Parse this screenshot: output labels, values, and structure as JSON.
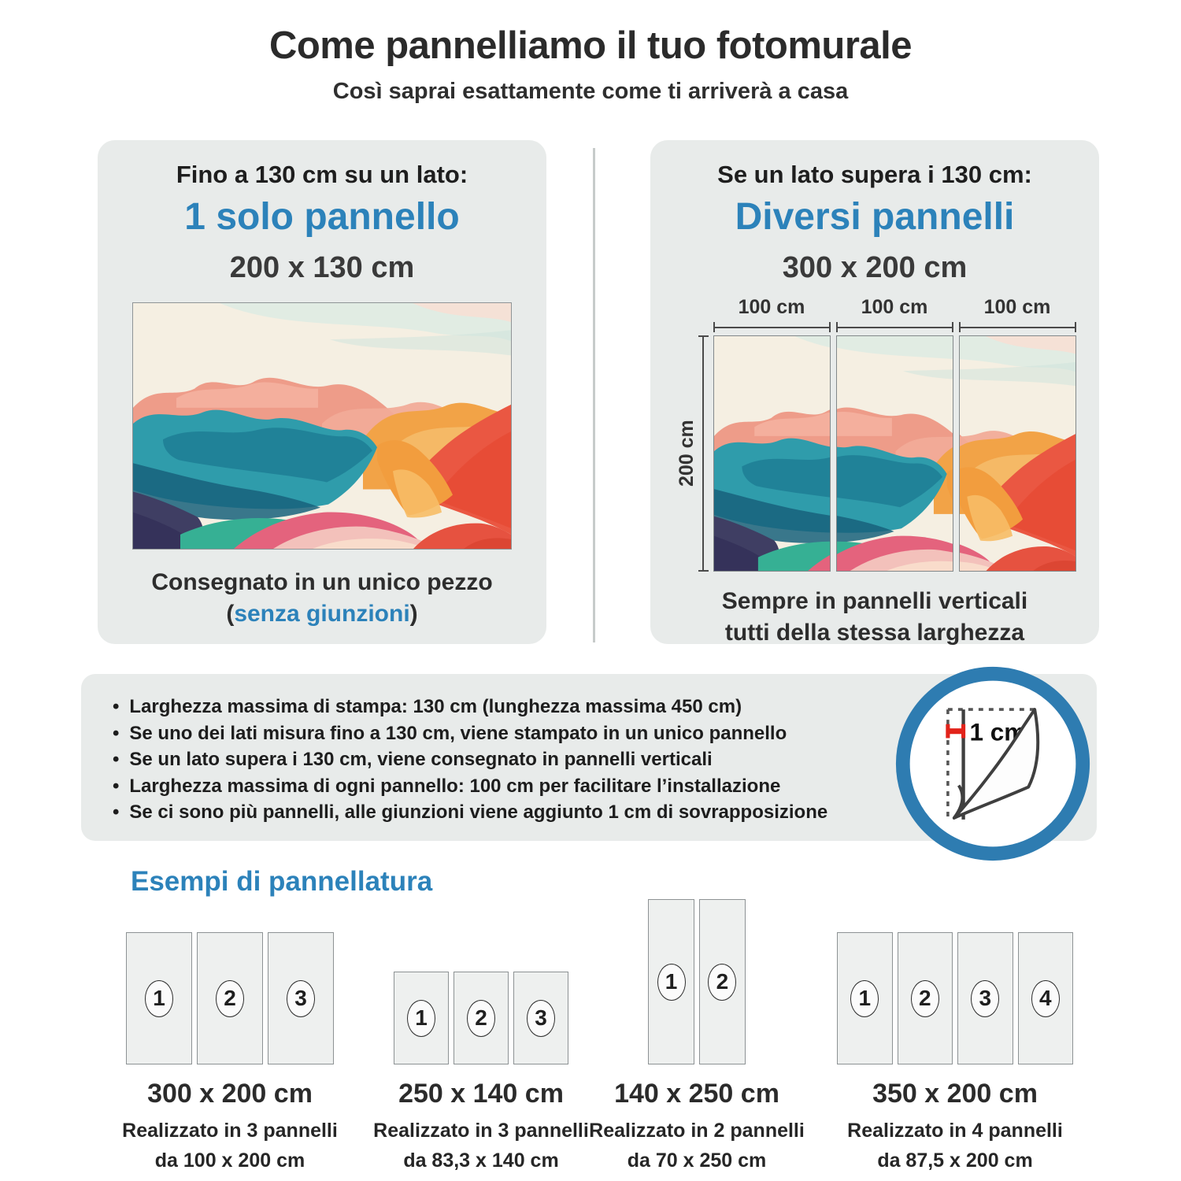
{
  "accent_color": "#2c82ba",
  "ring_color": "#2e7cb1",
  "marker_color": "#e2231a",
  "header": {
    "title": "Come pannelliamo il tuo fotomurale",
    "subtitle": "Così saprai esattamente come ti arriverà a casa"
  },
  "left_box": {
    "condition": "Fino a 130 cm su un lato:",
    "result": "1 solo pannello",
    "size": "200 x 130 cm",
    "caption_line1": "Consegnato in un unico pezzo",
    "caption_open": "(",
    "caption_highlight": "senza giunzioni",
    "caption_close": ")"
  },
  "right_box": {
    "condition": "Se un lato supera i 130 cm:",
    "result": "Diversi pannelli",
    "size": "300 x 200 cm",
    "width_labels": [
      "100 cm",
      "100 cm",
      "100 cm"
    ],
    "height_label": "200 cm",
    "caption_line1": "Sempre in pannelli verticali",
    "caption_line2": "tutti della stessa larghezza"
  },
  "info_box": {
    "bullets": [
      "Larghezza massima di stampa: 130 cm (lunghezza massima 450 cm)",
      "Se uno dei lati misura fino a 130 cm, viene stampato in un unico pannello",
      "Se un lato supera i 130 cm, viene consegnato in pannelli verticali",
      "Larghezza massima di ogni pannello: 100 cm per facilitare l’installazione",
      "Se ci sono più pannelli, alle giunzioni viene aggiunto 1 cm di sovrapposizione"
    ],
    "overlap_label": "1 cm"
  },
  "examples": {
    "heading": "Esempi di pannellatura",
    "items": [
      {
        "size": "300 x 200 cm",
        "desc_line1": "Realizzato in 3 pannelli",
        "desc_line2": "da 100 x 200 cm",
        "panels": [
          "1",
          "2",
          "3"
        ],
        "w_cm": 300,
        "h_cm": 200
      },
      {
        "size": "250 x 140 cm",
        "desc_line1": "Realizzato in 3 pannelli",
        "desc_line2": "da 83,3 x 140 cm",
        "panels": [
          "1",
          "2",
          "3"
        ],
        "w_cm": 250,
        "h_cm": 140
      },
      {
        "size": "140 x 250 cm",
        "desc_line1": "Realizzato in 2 pannelli",
        "desc_line2": "da 70 x 250 cm",
        "panels": [
          "1",
          "2"
        ],
        "w_cm": 140,
        "h_cm": 250
      },
      {
        "size": "350 x 200 cm",
        "desc_line1": "Realizzato in 4 pannelli",
        "desc_line2": "da 87,5 x 200 cm",
        "panels": [
          "1",
          "2",
          "3",
          "4"
        ],
        "w_cm": 350,
        "h_cm": 200
      }
    ]
  }
}
